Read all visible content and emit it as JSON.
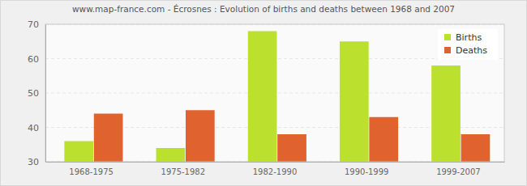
{
  "chart_data": {
    "type": "bar",
    "title": "www.map-france.com - Écrosnes : Evolution of births and deaths between 1968 and 2007",
    "categories": [
      "1968-1975",
      "1975-1982",
      "1982-1990",
      "1990-1999",
      "1999-2007"
    ],
    "series": [
      {
        "name": "Births",
        "color": "#bbe02d",
        "values": [
          36,
          34,
          68,
          65,
          58
        ]
      },
      {
        "name": "Deaths",
        "color": "#e0632f",
        "values": [
          44,
          45,
          38,
          43,
          38
        ]
      }
    ],
    "ylim": [
      30,
      70
    ],
    "yticks": [
      30,
      40,
      50,
      60,
      70
    ],
    "grid": true,
    "legend": "top-right"
  }
}
